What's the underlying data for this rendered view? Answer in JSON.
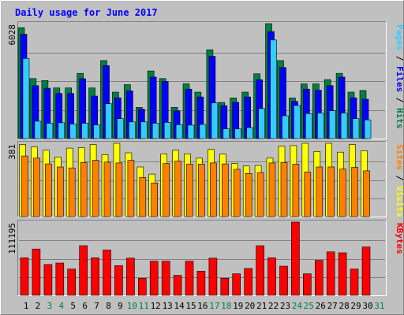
{
  "chart_data": {
    "type": "bar",
    "title": "Daily usage for June 2017",
    "x_days": [
      "1",
      "2",
      "3",
      "4",
      "5",
      "6",
      "7",
      "8",
      "9",
      "10",
      "11",
      "12",
      "13",
      "14",
      "15",
      "16",
      "17",
      "18",
      "19",
      "20",
      "21",
      "22",
      "23",
      "24",
      "25",
      "26",
      "27",
      "28",
      "29",
      "30",
      "31"
    ],
    "weekend_days": [
      "3",
      "4",
      "10",
      "11",
      "17",
      "18",
      "24",
      "25",
      "31"
    ],
    "panels": [
      {
        "id": "pages-files-hits",
        "ytick": "6028",
        "ymax": 6028,
        "right_labels": [
          {
            "text": "Pages",
            "color": "#33ccff"
          },
          {
            "text": " / ",
            "color": "#000000"
          },
          {
            "text": "Files",
            "color": "#0000ff"
          },
          {
            "text": " / ",
            "color": "#000000"
          },
          {
            "text": "Hits",
            "color": "#008040"
          }
        ],
        "series": [
          {
            "name": "Hits",
            "color": "#008040",
            "values": [
              5816,
              3148,
              3044,
              2653,
              2653,
              3418,
              2653,
              4091,
              2436,
              2828,
              1633,
              3548,
              3148,
              1633,
              2871,
              2436,
              4656,
              1895,
              2131,
              2436,
              3396,
              6028,
              4091,
              2131,
              2871,
              2871,
              3092,
              3418,
              2436,
              2522
            ]
          },
          {
            "name": "Files",
            "color": "#0000ff",
            "values": [
              5472,
              2776,
              2640,
              2365,
              2365,
              3136,
              2228,
              3827,
              2138,
              2501,
              1546,
              3225,
              2997,
              1456,
              2592,
              2184,
              4310,
              1727,
              1904,
              2184,
              3092,
              5610,
              3729,
              1953,
              2592,
              2537,
              2776,
              3225,
              2138,
              2066
            ]
          },
          {
            "name": "Pages",
            "color": "#33ccff",
            "values": [
              4198,
              911,
              804,
              828,
              768,
              804,
              720,
              1828,
              1043,
              875,
              875,
              804,
              852,
              731,
              707,
              743,
              1871,
              509,
              509,
              577,
              1572,
              5171,
              1199,
              1739,
              1313,
              1342,
              1456,
              1342,
              1043,
              984
            ]
          }
        ]
      },
      {
        "id": "visits-sites",
        "ytick": "381",
        "ymax": 381,
        "right_labels": [
          {
            "text": "Sites",
            "color": "#ff8000"
          },
          {
            "text": " / ",
            "color": "#000000"
          },
          {
            "text": "Visits",
            "color": "#ffff00"
          }
        ],
        "series": [
          {
            "name": "Visits",
            "color": "#ffff00",
            "values": [
              375,
              362,
              345,
              310,
              356,
              359,
              375,
              322,
              381,
              332,
              258,
              221,
              326,
              345,
              326,
              304,
              350,
              325,
              276,
              263,
              266,
              304,
              366,
              369,
              381,
              339,
              381,
              335,
              375,
              342
            ]
          },
          {
            "name": "Sites",
            "color": "#ff8000",
            "values": [
              315,
              304,
              274,
              258,
              253,
              281,
              293,
              283,
              279,
              292,
              203,
              175,
              276,
              289,
              273,
              273,
              279,
              274,
              246,
              224,
              229,
              279,
              281,
              273,
              232,
              258,
              258,
              247,
              256,
              238
            ]
          }
        ]
      },
      {
        "id": "kbytes",
        "ytick": "111195",
        "ymax": 111195,
        "right_labels": [
          {
            "text": "KBytes",
            "color": "#ff0000"
          }
        ],
        "series": [
          {
            "name": "KBytes",
            "color": "#ff0000",
            "values": [
              56868,
              70269,
              46751,
              49035,
              39899,
              75298,
              56868,
              68717,
              45131,
              56409,
              25810,
              51777,
              51777,
              30378,
              51777,
              36701,
              56409,
              25810,
              32663,
              40813,
              75298,
              56868,
              44217,
              111195,
              32663,
              53120,
              65962,
              64545,
              39899,
              73464
            ]
          }
        ]
      }
    ]
  }
}
